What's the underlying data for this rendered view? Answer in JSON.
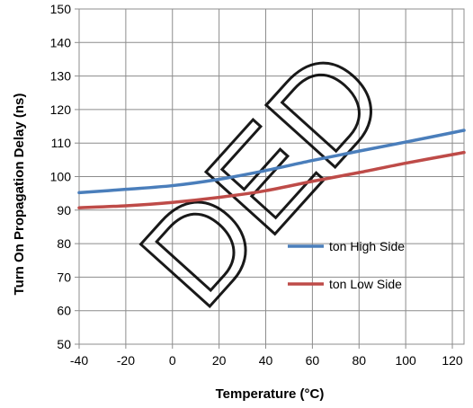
{
  "chart_data": {
    "type": "line",
    "xlabel": "Temperature (°C)",
    "ylabel": "Turn On Propagation Delay (ns)",
    "xlim": [
      -40,
      125
    ],
    "ylim": [
      50,
      150
    ],
    "x_ticks": [
      -40,
      -20,
      0,
      20,
      40,
      60,
      80,
      100,
      120
    ],
    "y_ticks": [
      50,
      60,
      70,
      80,
      90,
      100,
      110,
      120,
      130,
      140,
      150
    ],
    "grid": true,
    "legend_position": "right-middle",
    "series": [
      {
        "name": "ton High Side",
        "color": "#4a7ebb",
        "x": [
          -40,
          -20,
          0,
          20,
          40,
          60,
          80,
          100,
          125
        ],
        "y": [
          95.2,
          96.2,
          97.3,
          99.2,
          101.8,
          104.8,
          107.6,
          110.3,
          113.8
        ]
      },
      {
        "name": "ton Low Side",
        "color": "#be4b48",
        "x": [
          -40,
          -20,
          0,
          20,
          40,
          60,
          80,
          100,
          125
        ],
        "y": [
          90.7,
          91.3,
          92.3,
          93.8,
          95.8,
          98.6,
          101.2,
          104.0,
          107.2
        ]
      }
    ],
    "watermark": "DED"
  }
}
